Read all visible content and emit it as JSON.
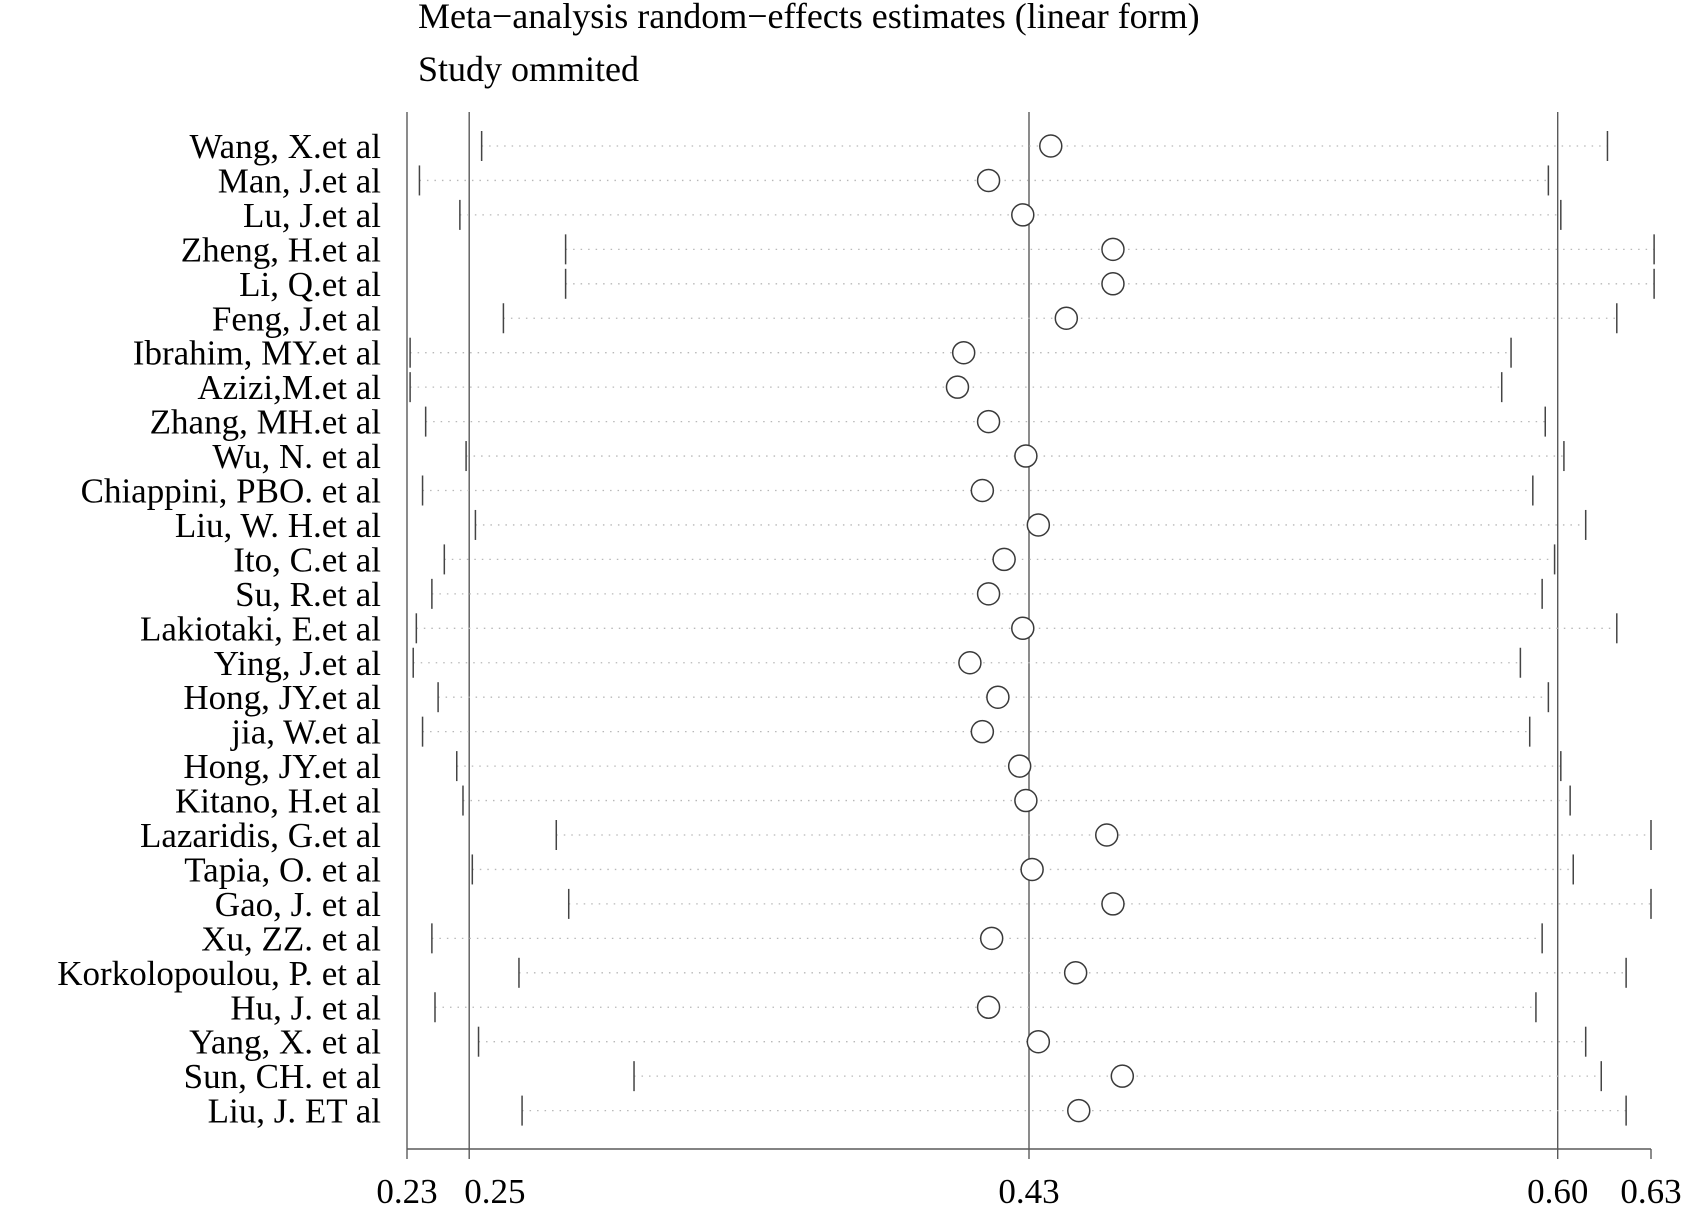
{
  "chart_data": {
    "type": "forest",
    "title": "Meta−analysis random−effects estimates (linear form)",
    "subtitle": "Study ommited",
    "xlim": [
      0.23,
      0.63
    ],
    "xticks": [
      0.23,
      0.25,
      0.43,
      0.6,
      0.63
    ],
    "xtick_labels": [
      "0.23",
      "0.25",
      "0.43",
      "0.60",
      "0.63"
    ],
    "reference_lines": [
      0.25,
      0.43,
      0.6
    ],
    "grid": false,
    "studies": [
      {
        "name": "Wang, X.et al",
        "estimate": 0.437,
        "lower": 0.254,
        "upper": 0.616
      },
      {
        "name": "Man, J.et al",
        "estimate": 0.417,
        "lower": 0.234,
        "upper": 0.597
      },
      {
        "name": "Lu, J.et al",
        "estimate": 0.428,
        "lower": 0.247,
        "upper": 0.601
      },
      {
        "name": "Zheng, H.et al",
        "estimate": 0.457,
        "lower": 0.281,
        "upper": 0.631
      },
      {
        "name": "Li, Q.et al",
        "estimate": 0.457,
        "lower": 0.281,
        "upper": 0.631
      },
      {
        "name": "Feng, J.et al",
        "estimate": 0.442,
        "lower": 0.261,
        "upper": 0.619
      },
      {
        "name": "Ibrahim, MY.et al",
        "estimate": 0.409,
        "lower": 0.231,
        "upper": 0.585
      },
      {
        "name": "Azizi,M.et al",
        "estimate": 0.407,
        "lower": 0.231,
        "upper": 0.582
      },
      {
        "name": "Zhang, MH.et al",
        "estimate": 0.417,
        "lower": 0.236,
        "upper": 0.596
      },
      {
        "name": "Wu, N. et al",
        "estimate": 0.429,
        "lower": 0.249,
        "upper": 0.602
      },
      {
        "name": "Chiappini, PBO. et al",
        "estimate": 0.415,
        "lower": 0.235,
        "upper": 0.592
      },
      {
        "name": "Liu, W. H.et al",
        "estimate": 0.433,
        "lower": 0.252,
        "upper": 0.609
      },
      {
        "name": "Ito, C.et al",
        "estimate": 0.422,
        "lower": 0.242,
        "upper": 0.599
      },
      {
        "name": "Su, R.et al",
        "estimate": 0.417,
        "lower": 0.238,
        "upper": 0.595
      },
      {
        "name": "Lakiotaki, E.et al",
        "estimate": 0.428,
        "lower": 0.233,
        "upper": 0.619
      },
      {
        "name": "Ying, J.et al",
        "estimate": 0.411,
        "lower": 0.232,
        "upper": 0.588
      },
      {
        "name": "Hong, JY.et al",
        "estimate": 0.42,
        "lower": 0.24,
        "upper": 0.597
      },
      {
        "name": "jia, W.et al",
        "estimate": 0.415,
        "lower": 0.235,
        "upper": 0.591
      },
      {
        "name": "Hong, JY.et al",
        "estimate": 0.427,
        "lower": 0.246,
        "upper": 0.601
      },
      {
        "name": "Kitano, H.et al",
        "estimate": 0.429,
        "lower": 0.248,
        "upper": 0.604
      },
      {
        "name": "Lazaridis, G.et al",
        "estimate": 0.455,
        "lower": 0.278,
        "upper": 0.63
      },
      {
        "name": "Tapia, O. et al",
        "estimate": 0.431,
        "lower": 0.251,
        "upper": 0.605
      },
      {
        "name": "Gao, J. et al",
        "estimate": 0.457,
        "lower": 0.282,
        "upper": 0.63
      },
      {
        "name": "Xu, ZZ. et al",
        "estimate": 0.418,
        "lower": 0.238,
        "upper": 0.595
      },
      {
        "name": "Korkolopoulou, P. et al",
        "estimate": 0.445,
        "lower": 0.266,
        "upper": 0.622
      },
      {
        "name": "Hu, J. et al",
        "estimate": 0.417,
        "lower": 0.239,
        "upper": 0.593
      },
      {
        "name": "Yang, X. et al",
        "estimate": 0.433,
        "lower": 0.253,
        "upper": 0.609
      },
      {
        "name": "Sun, CH. et al",
        "estimate": 0.46,
        "lower": 0.303,
        "upper": 0.614
      },
      {
        "name": "Liu, J. ET al",
        "estimate": 0.446,
        "lower": 0.267,
        "upper": 0.622
      }
    ]
  }
}
